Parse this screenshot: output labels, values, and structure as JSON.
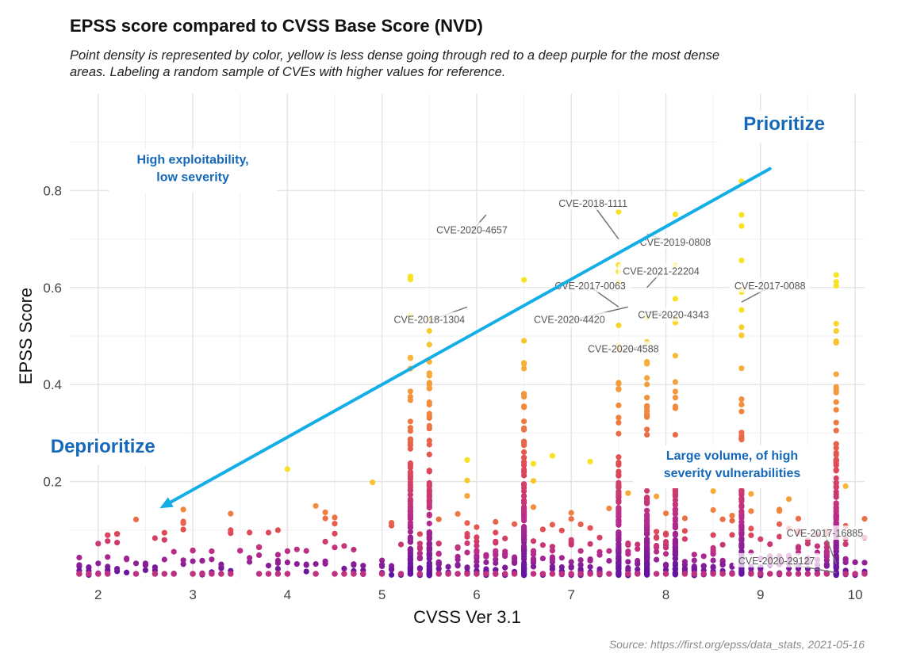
{
  "chart_data": {
    "type": "scatter",
    "title": "EPSS score compared to CVSS Base Score (NVD)",
    "subtitle": "Point density is represented by color, yellow is less dense going through red to a deep purple for the most dense areas. Labeling a random sample of CVEs with higher values for reference.",
    "xlabel": "CVSS Ver 3.1",
    "ylabel": "EPSS Score",
    "xlim": [
      1.7,
      10.1
    ],
    "ylim": [
      0,
      1.0
    ],
    "xticks": [
      2,
      3,
      4,
      5,
      6,
      7,
      8,
      9,
      10
    ],
    "yticks": [
      0.2,
      0.4,
      0.6,
      0.8
    ],
    "grid": true,
    "colors": {
      "low_density": "#f7e225",
      "mid_density": "#f7a23e",
      "high_density": "#d9455f",
      "highest_density": "#5b11a3",
      "trend_arrow": "#14aee6",
      "callout_text": "#1569b8"
    },
    "trend_arrow": {
      "from": [
        9.1,
        0.845
      ],
      "to": [
        2.65,
        0.145
      ]
    },
    "callouts": [
      {
        "text": [
          "High exploitability,",
          "low severity"
        ],
        "x": 3.0,
        "y": 0.855,
        "size": "small"
      },
      {
        "text": [
          "Prioritize"
        ],
        "x": 9.25,
        "y": 0.925,
        "size": "large"
      },
      {
        "text": [
          "Deprioritize"
        ],
        "x": 2.05,
        "y": 0.26,
        "size": "large"
      },
      {
        "text": [
          "Large volume, of high",
          "severity vulnerabilities"
        ],
        "x": 8.7,
        "y": 0.245,
        "size": "small"
      }
    ],
    "labeled_cves": [
      {
        "id": "CVE-2020-4657",
        "x": 6.1,
        "y": 0.75,
        "lx": 5.95,
        "ly": 0.71
      },
      {
        "id": "CVE-2018-1111",
        "x": 7.5,
        "y": 0.7,
        "lx": 7.23,
        "ly": 0.765
      },
      {
        "id": "CVE-2019-0808",
        "x": 7.8,
        "y": 0.71,
        "lx": 8.1,
        "ly": 0.685
      },
      {
        "id": "CVE-2021-22204",
        "x": 7.8,
        "y": 0.6,
        "lx": 7.95,
        "ly": 0.625
      },
      {
        "id": "CVE-2017-0063",
        "x": 7.5,
        "y": 0.56,
        "lx": 7.2,
        "ly": 0.595
      },
      {
        "id": "CVE-2017-0088",
        "x": 8.8,
        "y": 0.57,
        "lx": 9.1,
        "ly": 0.595
      },
      {
        "id": "CVE-2018-1304",
        "x": 5.9,
        "y": 0.56,
        "lx": 5.5,
        "ly": 0.525
      },
      {
        "id": "CVE-2020-4420",
        "x": 7.6,
        "y": 0.56,
        "lx": 6.98,
        "ly": 0.525
      },
      {
        "id": "CVE-2020-4343",
        "x": 7.8,
        "y": 0.55,
        "lx": 8.08,
        "ly": 0.535
      },
      {
        "id": "CVE-2020-4588",
        "x": 7.8,
        "y": 0.48,
        "lx": 7.55,
        "ly": 0.465
      },
      {
        "id": "CVE-2017-16885",
        "x": 9.8,
        "y": 0.03,
        "lx": 9.68,
        "ly": 0.085
      },
      {
        "id": "CVE-2020-29127",
        "x": 9.8,
        "y": 0.012,
        "lx": 9.17,
        "ly": 0.028
      }
    ]
  },
  "source": "Source: https://first.org/epss/data_stats, 2021-05-16"
}
